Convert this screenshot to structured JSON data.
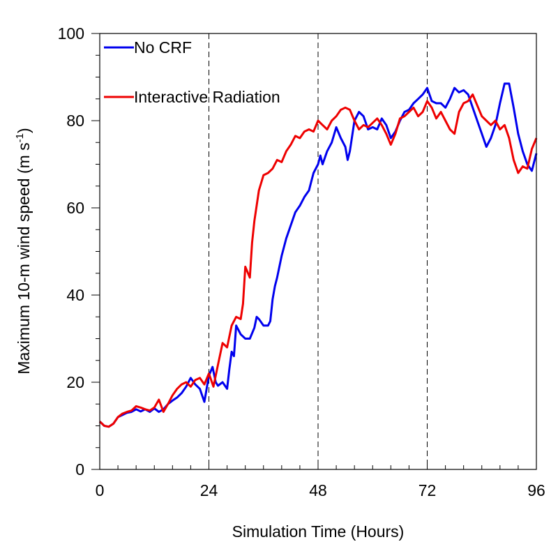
{
  "chart_data": {
    "type": "line",
    "xlabel": "Simulation Time (Hours)",
    "ylabel_main": "Maximum 10-m wind speed (m s",
    "ylabel_sup": "-1",
    "ylabel_close": ")",
    "xlim": [
      0,
      96
    ],
    "ylim": [
      0,
      100
    ],
    "xticks": [
      0,
      24,
      48,
      72,
      96
    ],
    "yticks": [
      0,
      20,
      40,
      60,
      80,
      100
    ],
    "x_minor_step": 4,
    "y_minor_step": 5,
    "vlines": [
      24,
      48,
      72,
      96
    ],
    "legend_position": "top-left",
    "series": [
      {
        "name": "No CRF",
        "color": "#0000ee",
        "points": [
          [
            0,
            11
          ],
          [
            0.5,
            10.5
          ],
          [
            1,
            10
          ],
          [
            2,
            9.8
          ],
          [
            3,
            10.5
          ],
          [
            4,
            12
          ],
          [
            5,
            12.5
          ],
          [
            6,
            13
          ],
          [
            7,
            13.2
          ],
          [
            8,
            13.8
          ],
          [
            9,
            13.3
          ],
          [
            10,
            13.8
          ],
          [
            11,
            13.2
          ],
          [
            12,
            14
          ],
          [
            13,
            13.2
          ],
          [
            14,
            13.8
          ],
          [
            15,
            15
          ],
          [
            16,
            15.8
          ],
          [
            17,
            16.5
          ],
          [
            18,
            17.5
          ],
          [
            19,
            19
          ],
          [
            20,
            21
          ],
          [
            21,
            19.5
          ],
          [
            22,
            18.5
          ],
          [
            23,
            15.5
          ],
          [
            24,
            21.5
          ],
          [
            24.8,
            23.5
          ],
          [
            25.5,
            20
          ],
          [
            26,
            19.2
          ],
          [
            27,
            20
          ],
          [
            28,
            18.5
          ],
          [
            28.5,
            23
          ],
          [
            29,
            27
          ],
          [
            29.5,
            26
          ],
          [
            30,
            33
          ],
          [
            31,
            31
          ],
          [
            32,
            30
          ],
          [
            33,
            30
          ],
          [
            34,
            32.5
          ],
          [
            34.5,
            35
          ],
          [
            35,
            34.5
          ],
          [
            36,
            33
          ],
          [
            37,
            33
          ],
          [
            37.5,
            34
          ],
          [
            38,
            39
          ],
          [
            38.5,
            42
          ],
          [
            39,
            44
          ],
          [
            40,
            49
          ],
          [
            41,
            53
          ],
          [
            42,
            56
          ],
          [
            43,
            59
          ],
          [
            44,
            60.5
          ],
          [
            45,
            62.5
          ],
          [
            46,
            64
          ],
          [
            46.5,
            66
          ],
          [
            47,
            68
          ],
          [
            48,
            70
          ],
          [
            48.5,
            72
          ],
          [
            49,
            70
          ],
          [
            50,
            73
          ],
          [
            51,
            75
          ],
          [
            52,
            78.5
          ],
          [
            53,
            76
          ],
          [
            54,
            74
          ],
          [
            54.5,
            71
          ],
          [
            55,
            73
          ],
          [
            56,
            80
          ],
          [
            57,
            82
          ],
          [
            58,
            81
          ],
          [
            59,
            78
          ],
          [
            60,
            78.5
          ],
          [
            61,
            78
          ],
          [
            62,
            80.5
          ],
          [
            63,
            79
          ],
          [
            64,
            76
          ],
          [
            65,
            77.5
          ],
          [
            66,
            80
          ],
          [
            67,
            82
          ],
          [
            68,
            82.5
          ],
          [
            69,
            84
          ],
          [
            70,
            85
          ],
          [
            71,
            86
          ],
          [
            72,
            87.5
          ],
          [
            73,
            84.5
          ],
          [
            74,
            84
          ],
          [
            75,
            84
          ],
          [
            76,
            83
          ],
          [
            77,
            85
          ],
          [
            78,
            87.5
          ],
          [
            79,
            86.5
          ],
          [
            80,
            87
          ],
          [
            81,
            86
          ],
          [
            82,
            83
          ],
          [
            83,
            80
          ],
          [
            84,
            77
          ],
          [
            85,
            74
          ],
          [
            86,
            76
          ],
          [
            87,
            79
          ],
          [
            88,
            84
          ],
          [
            89,
            88.5
          ],
          [
            90,
            88.5
          ],
          [
            91,
            83
          ],
          [
            92,
            77
          ],
          [
            93,
            73
          ],
          [
            94,
            70
          ],
          [
            95,
            68.5
          ],
          [
            96,
            72.5
          ]
        ]
      },
      {
        "name": "Interactive Radiation",
        "color": "#ee0000",
        "points": [
          [
            0,
            11
          ],
          [
            0.5,
            10.5
          ],
          [
            1,
            10
          ],
          [
            2,
            9.8
          ],
          [
            3,
            10.5
          ],
          [
            4,
            12
          ],
          [
            5,
            12.8
          ],
          [
            6,
            13.2
          ],
          [
            7,
            13.5
          ],
          [
            8,
            14.5
          ],
          [
            9,
            14.2
          ],
          [
            10,
            13.8
          ],
          [
            11,
            13.5
          ],
          [
            12,
            14.2
          ],
          [
            13,
            16
          ],
          [
            14,
            13.2
          ],
          [
            15,
            15
          ],
          [
            16,
            17
          ],
          [
            17,
            18.5
          ],
          [
            18,
            19.5
          ],
          [
            19,
            20
          ],
          [
            20,
            19
          ],
          [
            21,
            20.5
          ],
          [
            22,
            21
          ],
          [
            23,
            19.5
          ],
          [
            24,
            22
          ],
          [
            25,
            19
          ],
          [
            26,
            24
          ],
          [
            27,
            29
          ],
          [
            28,
            28
          ],
          [
            29,
            33
          ],
          [
            30,
            35
          ],
          [
            31,
            34.5
          ],
          [
            31.5,
            38
          ],
          [
            32,
            46.5
          ],
          [
            33,
            44
          ],
          [
            33.5,
            52
          ],
          [
            34,
            57
          ],
          [
            35,
            64
          ],
          [
            36,
            67.5
          ],
          [
            37,
            68
          ],
          [
            38,
            69
          ],
          [
            39,
            71
          ],
          [
            40,
            70.5
          ],
          [
            41,
            73
          ],
          [
            42,
            74.5
          ],
          [
            43,
            76.5
          ],
          [
            44,
            76
          ],
          [
            45,
            77.5
          ],
          [
            46,
            78
          ],
          [
            47,
            77.5
          ],
          [
            48,
            80
          ],
          [
            49,
            79
          ],
          [
            50,
            78
          ],
          [
            51,
            80
          ],
          [
            52,
            81
          ],
          [
            53,
            82.5
          ],
          [
            54,
            83
          ],
          [
            55,
            82.5
          ],
          [
            56,
            80
          ],
          [
            57,
            78
          ],
          [
            58,
            79
          ],
          [
            59,
            78.5
          ],
          [
            60,
            79.5
          ],
          [
            61,
            80.5
          ],
          [
            62,
            79
          ],
          [
            63,
            77
          ],
          [
            64,
            74.5
          ],
          [
            65,
            77
          ],
          [
            66,
            80.5
          ],
          [
            67,
            81
          ],
          [
            68,
            82
          ],
          [
            69,
            83
          ],
          [
            70,
            81
          ],
          [
            71,
            82
          ],
          [
            72,
            84.5
          ],
          [
            73,
            83
          ],
          [
            74,
            80.5
          ],
          [
            75,
            82
          ],
          [
            76,
            80
          ],
          [
            77,
            78
          ],
          [
            78,
            77
          ],
          [
            79,
            82
          ],
          [
            80,
            84
          ],
          [
            81,
            84.5
          ],
          [
            82,
            86
          ],
          [
            83,
            83.5
          ],
          [
            84,
            81
          ],
          [
            85,
            80
          ],
          [
            86,
            79
          ],
          [
            87,
            80
          ],
          [
            88,
            78
          ],
          [
            89,
            79
          ],
          [
            90,
            76
          ],
          [
            91,
            71
          ],
          [
            92,
            68
          ],
          [
            93,
            69.5
          ],
          [
            94,
            69
          ],
          [
            95,
            73.5
          ],
          [
            96,
            76
          ]
        ]
      }
    ]
  }
}
